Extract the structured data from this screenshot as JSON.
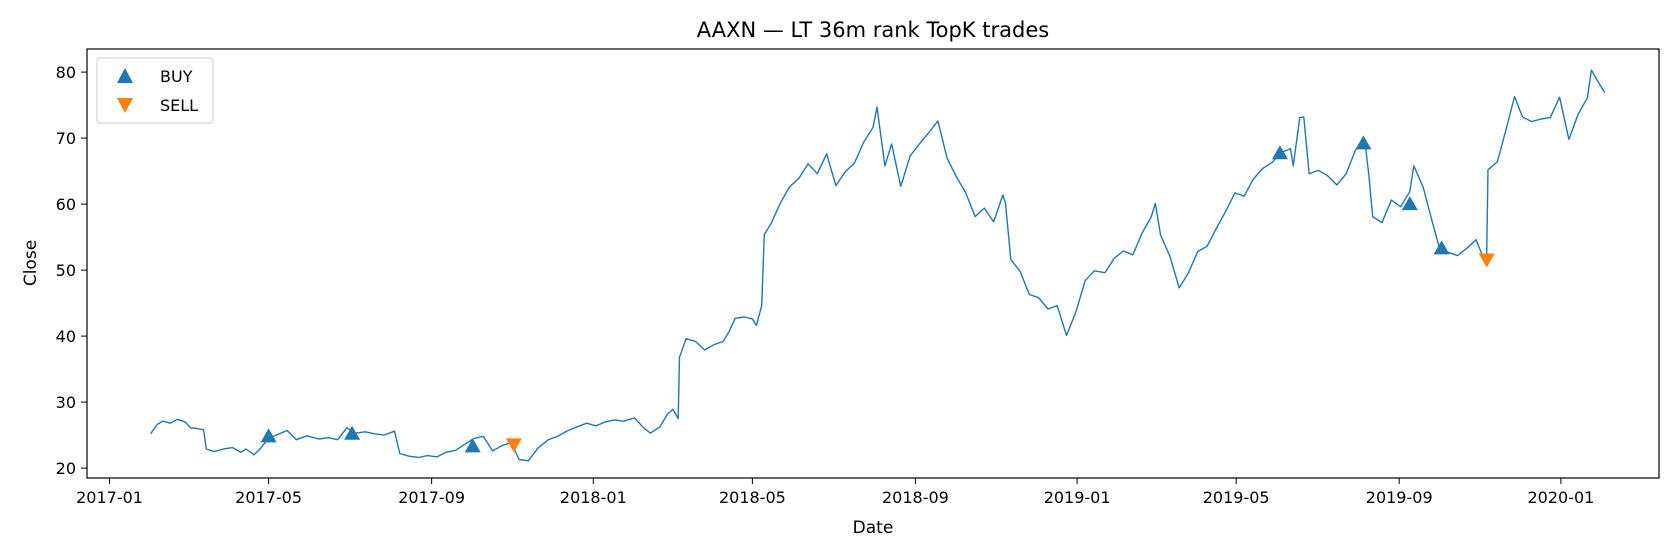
{
  "chart_data": {
    "type": "line",
    "title": "AAXN — LT 36m rank TopK trades",
    "xlabel": "Date",
    "ylabel": "Close",
    "xlim": [
      "2016-12-15",
      "2020-03-15"
    ],
    "ylim": [
      18.5,
      83.5
    ],
    "x_ticks": [
      "2017-01-01",
      "2017-05-01",
      "2017-09-01",
      "2018-01-01",
      "2018-05-01",
      "2018-09-01",
      "2019-01-01",
      "2019-05-01",
      "2019-09-01",
      "2020-01-01"
    ],
    "x_tick_labels": [
      "2017-01",
      "2017-05",
      "2017-09",
      "2018-01",
      "2018-05",
      "2018-09",
      "2019-01",
      "2019-05",
      "2019-09",
      "2020-01"
    ],
    "y_ticks": [
      20,
      30,
      40,
      50,
      60,
      70,
      80
    ],
    "grid": false,
    "legend_position": "upper-left",
    "colors": {
      "price": "#1f77b4",
      "buy": "#1f77b4",
      "sell": "#ff7f0e"
    },
    "series": [
      {
        "kind": "line",
        "points": [
          [
            "2017-02-01",
            25.2
          ],
          [
            "2017-02-06",
            26.6
          ],
          [
            "2017-02-10",
            27.1
          ],
          [
            "2017-02-16",
            26.8
          ],
          [
            "2017-02-21",
            27.4
          ],
          [
            "2017-02-27",
            27.0
          ],
          [
            "2017-03-03",
            26.1
          ],
          [
            "2017-03-08",
            26.0
          ],
          [
            "2017-03-13",
            25.8
          ],
          [
            "2017-03-15",
            22.9
          ],
          [
            "2017-03-21",
            22.5
          ],
          [
            "2017-03-28",
            22.9
          ],
          [
            "2017-04-04",
            23.1
          ],
          [
            "2017-04-10",
            22.4
          ],
          [
            "2017-04-14",
            22.9
          ],
          [
            "2017-04-20",
            22.0
          ],
          [
            "2017-04-25",
            23.0
          ],
          [
            "2017-05-01",
            24.5
          ],
          [
            "2017-05-08",
            25.1
          ],
          [
            "2017-05-15",
            25.7
          ],
          [
            "2017-05-22",
            24.3
          ],
          [
            "2017-05-30",
            24.9
          ],
          [
            "2017-06-08",
            24.4
          ],
          [
            "2017-06-15",
            24.6
          ],
          [
            "2017-06-22",
            24.3
          ],
          [
            "2017-06-29",
            26.1
          ],
          [
            "2017-07-06",
            25.3
          ],
          [
            "2017-07-13",
            25.5
          ],
          [
            "2017-07-20",
            25.2
          ],
          [
            "2017-07-27",
            25.0
          ],
          [
            "2017-08-04",
            25.6
          ],
          [
            "2017-08-08",
            22.2
          ],
          [
            "2017-08-15",
            21.8
          ],
          [
            "2017-08-22",
            21.6
          ],
          [
            "2017-08-29",
            21.9
          ],
          [
            "2017-09-05",
            21.7
          ],
          [
            "2017-09-12",
            22.4
          ],
          [
            "2017-09-19",
            22.7
          ],
          [
            "2017-09-26",
            23.6
          ],
          [
            "2017-10-03",
            24.5
          ],
          [
            "2017-10-10",
            24.8
          ],
          [
            "2017-10-17",
            22.6
          ],
          [
            "2017-10-24",
            23.4
          ],
          [
            "2017-10-31",
            23.9
          ],
          [
            "2017-11-06",
            21.3
          ],
          [
            "2017-11-13",
            21.1
          ],
          [
            "2017-11-20",
            23.0
          ],
          [
            "2017-11-28",
            24.3
          ],
          [
            "2017-12-05",
            24.8
          ],
          [
            "2017-12-12",
            25.6
          ],
          [
            "2017-12-19",
            26.2
          ],
          [
            "2017-12-27",
            26.8
          ],
          [
            "2018-01-03",
            26.4
          ],
          [
            "2018-01-10",
            27.0
          ],
          [
            "2018-01-17",
            27.3
          ],
          [
            "2018-01-24",
            27.1
          ],
          [
            "2018-02-01",
            27.6
          ],
          [
            "2018-02-08",
            26.1
          ],
          [
            "2018-02-13",
            25.3
          ],
          [
            "2018-02-20",
            26.2
          ],
          [
            "2018-02-26",
            28.2
          ],
          [
            "2018-03-02",
            28.9
          ],
          [
            "2018-03-06",
            27.5
          ],
          [
            "2018-03-07",
            36.8
          ],
          [
            "2018-03-12",
            39.6
          ],
          [
            "2018-03-19",
            39.2
          ],
          [
            "2018-03-26",
            37.9
          ],
          [
            "2018-04-02",
            38.7
          ],
          [
            "2018-04-09",
            39.2
          ],
          [
            "2018-04-13",
            40.5
          ],
          [
            "2018-04-18",
            42.7
          ],
          [
            "2018-04-25",
            42.9
          ],
          [
            "2018-05-01",
            42.6
          ],
          [
            "2018-05-04",
            41.6
          ],
          [
            "2018-05-08",
            44.6
          ],
          [
            "2018-05-10",
            55.4
          ],
          [
            "2018-05-15",
            57.0
          ],
          [
            "2018-05-22",
            60.1
          ],
          [
            "2018-05-29",
            62.6
          ],
          [
            "2018-06-05",
            63.9
          ],
          [
            "2018-06-12",
            66.1
          ],
          [
            "2018-06-19",
            64.6
          ],
          [
            "2018-06-26",
            67.6
          ],
          [
            "2018-07-03",
            62.8
          ],
          [
            "2018-07-10",
            64.9
          ],
          [
            "2018-07-17",
            66.2
          ],
          [
            "2018-07-24",
            69.4
          ],
          [
            "2018-07-31",
            71.6
          ],
          [
            "2018-08-03",
            74.7
          ],
          [
            "2018-08-09",
            65.8
          ],
          [
            "2018-08-14",
            69.1
          ],
          [
            "2018-08-21",
            62.7
          ],
          [
            "2018-08-28",
            67.3
          ],
          [
            "2018-09-04",
            69.1
          ],
          [
            "2018-09-11",
            70.8
          ],
          [
            "2018-09-18",
            72.6
          ],
          [
            "2018-09-25",
            66.9
          ],
          [
            "2018-10-02",
            64.1
          ],
          [
            "2018-10-09",
            61.7
          ],
          [
            "2018-10-16",
            58.1
          ],
          [
            "2018-10-23",
            59.4
          ],
          [
            "2018-10-30",
            57.3
          ],
          [
            "2018-11-06",
            61.4
          ],
          [
            "2018-11-08",
            60.1
          ],
          [
            "2018-11-12",
            51.6
          ],
          [
            "2018-11-19",
            49.8
          ],
          [
            "2018-11-26",
            46.3
          ],
          [
            "2018-12-03",
            45.8
          ],
          [
            "2018-12-10",
            44.1
          ],
          [
            "2018-12-17",
            44.6
          ],
          [
            "2018-12-24",
            40.1
          ],
          [
            "2018-12-31",
            43.6
          ],
          [
            "2019-01-07",
            48.4
          ],
          [
            "2019-01-14",
            49.9
          ],
          [
            "2019-01-22",
            49.6
          ],
          [
            "2019-01-29",
            51.8
          ],
          [
            "2019-02-05",
            52.9
          ],
          [
            "2019-02-12",
            52.3
          ],
          [
            "2019-02-19",
            55.6
          ],
          [
            "2019-02-26",
            58.1
          ],
          [
            "2019-03-01",
            60.1
          ],
          [
            "2019-03-05",
            55.3
          ],
          [
            "2019-03-12",
            52.1
          ],
          [
            "2019-03-19",
            47.3
          ],
          [
            "2019-03-26",
            49.6
          ],
          [
            "2019-04-02",
            52.8
          ],
          [
            "2019-04-09",
            53.6
          ],
          [
            "2019-04-16",
            56.3
          ],
          [
            "2019-04-23",
            58.9
          ],
          [
            "2019-04-30",
            61.7
          ],
          [
            "2019-05-07",
            61.2
          ],
          [
            "2019-05-14",
            63.8
          ],
          [
            "2019-05-21",
            65.4
          ],
          [
            "2019-05-28",
            66.3
          ],
          [
            "2019-06-04",
            67.8
          ],
          [
            "2019-06-11",
            68.4
          ],
          [
            "2019-06-13",
            65.8
          ],
          [
            "2019-06-18",
            73.1
          ],
          [
            "2019-06-21",
            73.2
          ],
          [
            "2019-06-25",
            64.6
          ],
          [
            "2019-07-02",
            65.1
          ],
          [
            "2019-07-09",
            64.3
          ],
          [
            "2019-07-16",
            62.9
          ],
          [
            "2019-07-23",
            64.6
          ],
          [
            "2019-07-30",
            68.2
          ],
          [
            "2019-08-06",
            69.7
          ],
          [
            "2019-08-09",
            64.6
          ],
          [
            "2019-08-12",
            58.1
          ],
          [
            "2019-08-19",
            57.2
          ],
          [
            "2019-08-26",
            60.6
          ],
          [
            "2019-09-02",
            59.6
          ],
          [
            "2019-09-09",
            61.9
          ],
          [
            "2019-09-12",
            65.8
          ],
          [
            "2019-09-19",
            62.6
          ],
          [
            "2019-09-26",
            57.3
          ],
          [
            "2019-10-01",
            53.6
          ],
          [
            "2019-10-08",
            52.7
          ],
          [
            "2019-10-15",
            52.2
          ],
          [
            "2019-10-22",
            53.3
          ],
          [
            "2019-10-29",
            54.6
          ],
          [
            "2019-11-04",
            51.6
          ],
          [
            "2019-11-06",
            52.3
          ],
          [
            "2019-11-07",
            65.2
          ],
          [
            "2019-11-14",
            66.4
          ],
          [
            "2019-11-21",
            71.6
          ],
          [
            "2019-11-27",
            76.3
          ],
          [
            "2019-12-03",
            73.2
          ],
          [
            "2019-12-10",
            72.5
          ],
          [
            "2019-12-17",
            72.9
          ],
          [
            "2019-12-24",
            73.1
          ],
          [
            "2019-12-31",
            76.2
          ],
          [
            "2020-01-07",
            69.8
          ],
          [
            "2020-01-14",
            73.6
          ],
          [
            "2020-01-21",
            76.1
          ],
          [
            "2020-01-24",
            80.3
          ],
          [
            "2020-01-28",
            78.9
          ],
          [
            "2020-02-03",
            76.9
          ]
        ]
      },
      {
        "name": "BUY",
        "kind": "marker",
        "marker": "triangle-up",
        "points": [
          [
            "2017-05-01",
            24.8
          ],
          [
            "2017-07-03",
            25.2
          ],
          [
            "2017-10-02",
            23.3
          ],
          [
            "2019-06-03",
            67.7
          ],
          [
            "2019-08-05",
            69.2
          ],
          [
            "2019-09-09",
            60.0
          ],
          [
            "2019-10-03",
            53.3
          ]
        ]
      },
      {
        "name": "SELL",
        "kind": "marker",
        "marker": "triangle-down",
        "points": [
          [
            "2017-11-02",
            23.6
          ],
          [
            "2019-11-06",
            51.6
          ]
        ]
      }
    ]
  }
}
